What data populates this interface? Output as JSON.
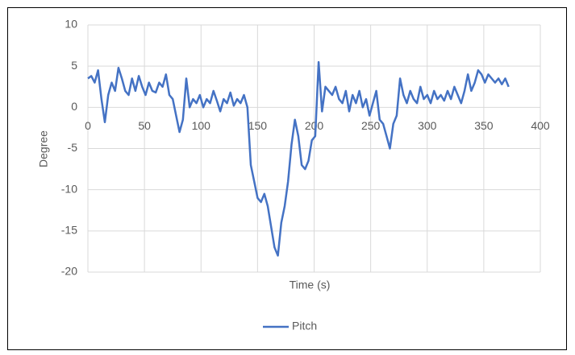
{
  "chart_data": {
    "type": "line",
    "xlabel": "Time (s)",
    "ylabel": "Degree",
    "x": [
      0,
      3,
      6,
      9,
      12,
      15,
      18,
      21,
      24,
      27,
      30,
      33,
      36,
      39,
      42,
      45,
      48,
      51,
      54,
      57,
      60,
      63,
      66,
      69,
      72,
      75,
      78,
      81,
      84,
      87,
      90,
      93,
      96,
      99,
      102,
      105,
      108,
      111,
      114,
      117,
      120,
      123,
      126,
      129,
      132,
      135,
      138,
      141,
      144,
      147,
      150,
      153,
      156,
      159,
      162,
      165,
      168,
      171,
      174,
      177,
      180,
      183,
      186,
      189,
      192,
      195,
      198,
      201,
      204,
      207,
      210,
      213,
      216,
      219,
      222,
      225,
      228,
      231,
      234,
      237,
      240,
      243,
      246,
      249,
      252,
      255,
      258,
      261,
      264,
      267,
      270,
      273,
      276,
      279,
      282,
      285,
      288,
      291,
      294,
      297,
      300,
      303,
      306,
      309,
      312,
      315,
      318,
      321,
      324,
      327,
      330,
      333,
      336,
      339,
      342,
      345,
      348,
      351,
      354,
      357,
      360,
      363,
      366,
      369,
      372
    ],
    "series": [
      {
        "name": "Pitch",
        "color": "#4472c4",
        "values": [
          3.5,
          3.8,
          3.0,
          4.5,
          1.0,
          -1.8,
          1.5,
          3.0,
          2.0,
          4.8,
          3.5,
          2.0,
          1.5,
          3.5,
          2.0,
          3.8,
          2.5,
          1.5,
          3.0,
          2.0,
          1.8,
          3.0,
          2.5,
          4.0,
          1.5,
          1.0,
          -1.0,
          -3.0,
          -1.5,
          3.5,
          0.0,
          1.0,
          0.5,
          1.5,
          0.0,
          1.0,
          0.5,
          2.0,
          0.8,
          -0.5,
          1.0,
          0.5,
          1.8,
          0.2,
          1.0,
          0.5,
          1.5,
          0.0,
          -7.0,
          -9.0,
          -11.0,
          -11.5,
          -10.5,
          -12.0,
          -14.5,
          -17.0,
          -18.0,
          -14.0,
          -12.0,
          -9.0,
          -4.5,
          -1.5,
          -3.5,
          -7.0,
          -7.5,
          -6.5,
          -4.0,
          -3.5,
          5.5,
          -0.5,
          2.5,
          2.0,
          1.5,
          2.5,
          1.0,
          0.5,
          2.0,
          -0.5,
          1.5,
          0.5,
          2.0,
          0.0,
          1.0,
          -1.0,
          0.5,
          2.0,
          -1.5,
          -2.0,
          -3.5,
          -5.0,
          -2.0,
          -1.0,
          3.5,
          1.5,
          0.5,
          2.0,
          1.0,
          0.5,
          2.5,
          1.0,
          1.5,
          0.5,
          2.0,
          1.0,
          1.5,
          0.8,
          2.0,
          1.0,
          2.5,
          1.5,
          0.5,
          2.0,
          4.0,
          2.0,
          3.0,
          4.5,
          4.0,
          3.0,
          4.0,
          3.5,
          3.0,
          3.5,
          2.8,
          3.5,
          2.5
        ]
      }
    ],
    "xlim": [
      0,
      400
    ],
    "xticks": [
      0,
      50,
      100,
      150,
      200,
      250,
      300,
      350,
      400
    ],
    "ylim": [
      -20,
      10
    ],
    "yticks": [
      -20,
      -15,
      -10,
      -5,
      0,
      5,
      10
    ],
    "grid": true,
    "legend": "bottom"
  }
}
